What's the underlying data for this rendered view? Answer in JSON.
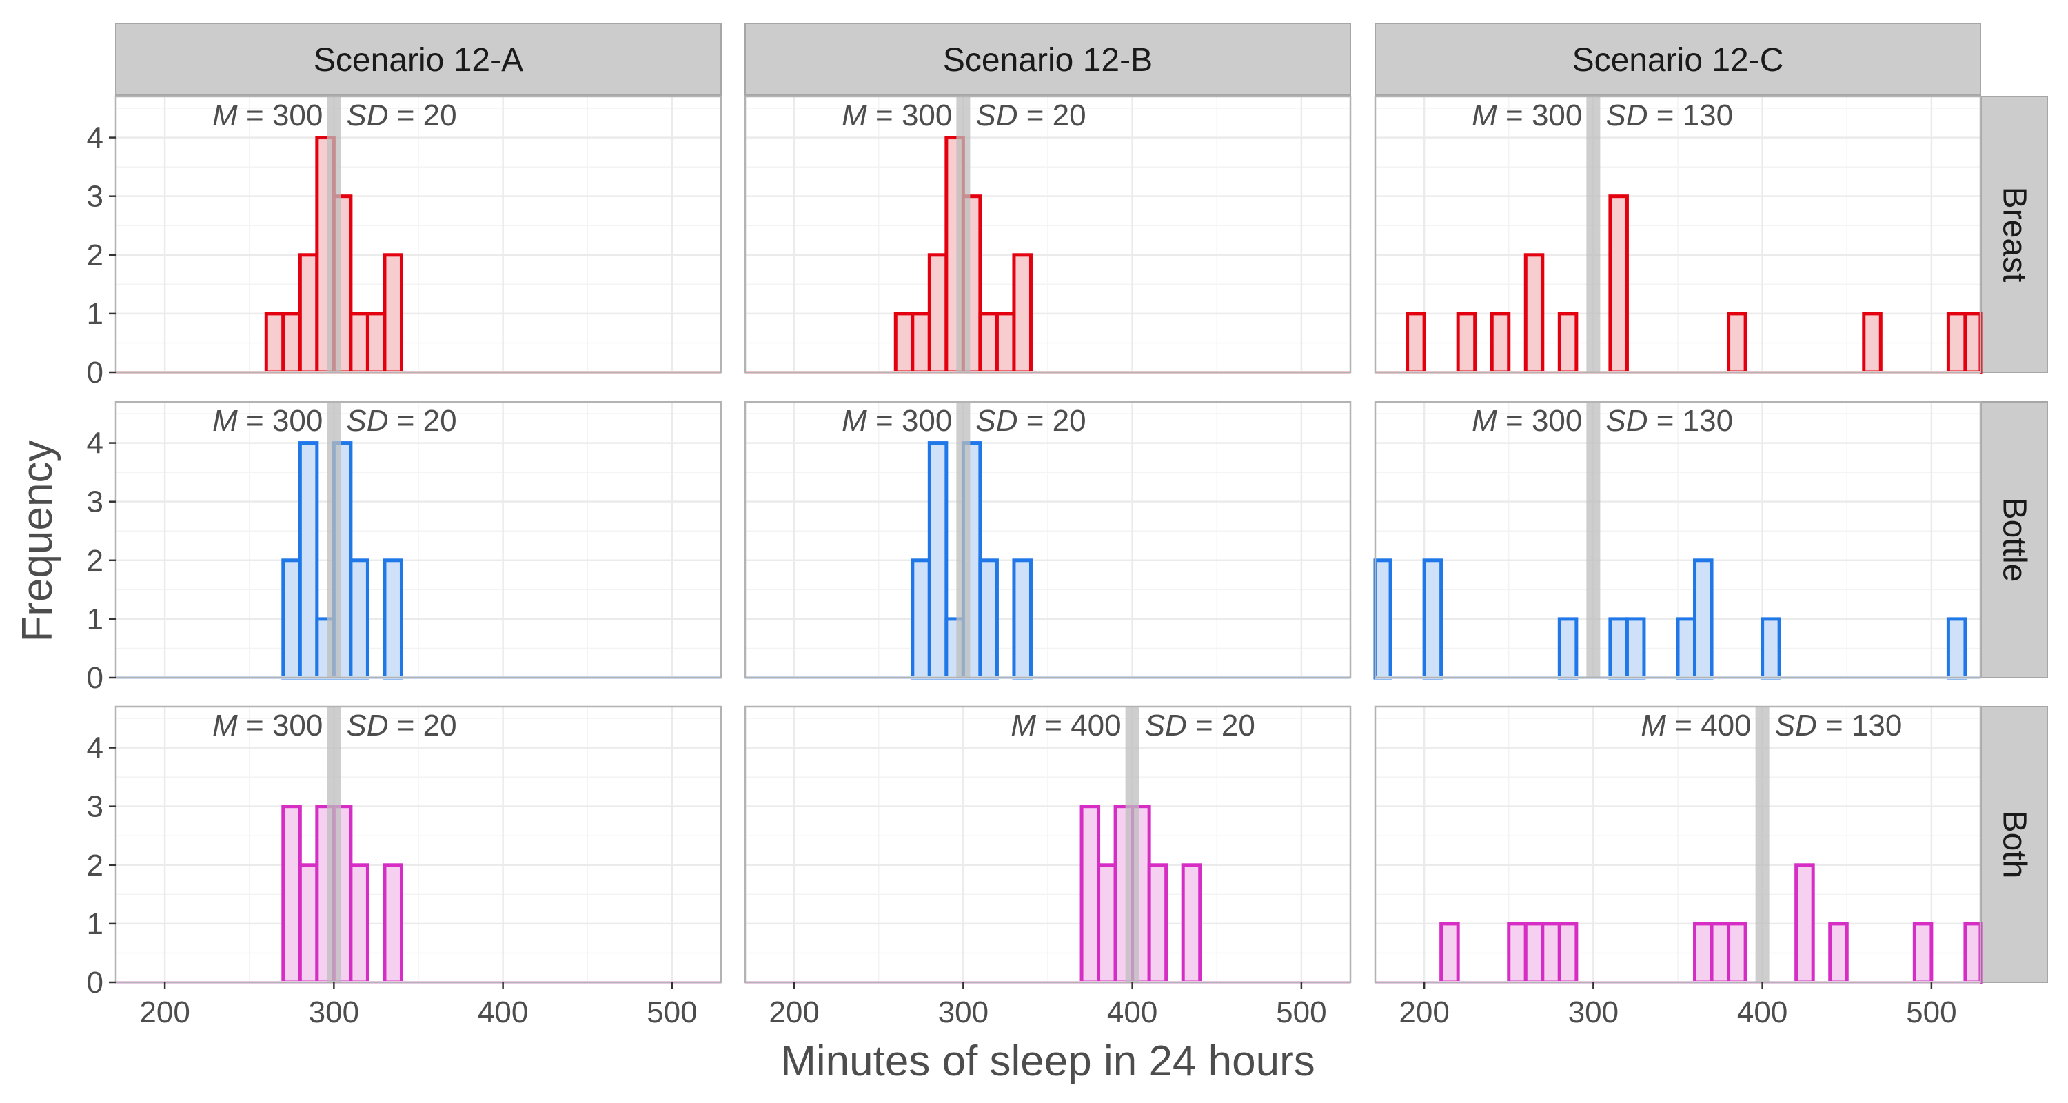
{
  "chart_data": {
    "type": "histogram",
    "xlabel": "Minutes of sleep in 24 hours",
    "ylabel": "Frequency",
    "xlim": [
      171,
      529
    ],
    "ylim": [
      0,
      4.7
    ],
    "x_ticks": [
      200,
      300,
      400,
      500
    ],
    "y_ticks": [
      0,
      1,
      2,
      3,
      4
    ],
    "bin_width": 10,
    "grid": true,
    "columns": [
      "Scenario 12-A",
      "Scenario 12-B",
      "Scenario 12-C"
    ],
    "rows": [
      "Breast",
      "Bottle",
      "Both"
    ],
    "colors": {
      "Breast": {
        "stroke": "#e3000f",
        "fill": "#f8cdd0"
      },
      "Bottle": {
        "stroke": "#1f77e8",
        "fill": "#cfe1f8"
      },
      "Both": {
        "stroke": "#d62ec4",
        "fill": "#f6d0f1"
      },
      "mean_line": "#bdbdbd",
      "strip_bg": "#cccccc",
      "grid": "#ebebeb"
    },
    "panels": [
      {
        "row": "Breast",
        "col": "Scenario 12-A",
        "m_label": "300",
        "sd_label": "20",
        "mean_line": 300,
        "bins": [
          [
            260,
            1
          ],
          [
            270,
            1
          ],
          [
            280,
            2
          ],
          [
            290,
            4
          ],
          [
            300,
            3
          ],
          [
            310,
            1
          ],
          [
            320,
            1
          ],
          [
            330,
            2
          ]
        ]
      },
      {
        "row": "Breast",
        "col": "Scenario 12-B",
        "m_label": "300",
        "sd_label": "20",
        "mean_line": 300,
        "bins": [
          [
            260,
            1
          ],
          [
            270,
            1
          ],
          [
            280,
            2
          ],
          [
            290,
            4
          ],
          [
            300,
            3
          ],
          [
            310,
            1
          ],
          [
            320,
            1
          ],
          [
            330,
            2
          ]
        ]
      },
      {
        "row": "Breast",
        "col": "Scenario 12-C",
        "m_label": "300",
        "sd_label": "130",
        "mean_line": 300,
        "bins": [
          [
            190,
            1
          ],
          [
            220,
            1
          ],
          [
            240,
            1
          ],
          [
            260,
            2
          ],
          [
            280,
            1
          ],
          [
            310,
            3
          ],
          [
            380,
            1
          ],
          [
            460,
            1
          ],
          [
            510,
            1
          ],
          [
            520,
            1
          ]
        ]
      },
      {
        "row": "Bottle",
        "col": "Scenario 12-A",
        "m_label": "300",
        "sd_label": "20",
        "mean_line": 300,
        "bins": [
          [
            270,
            2
          ],
          [
            280,
            4
          ],
          [
            290,
            1
          ],
          [
            300,
            4
          ],
          [
            310,
            2
          ],
          [
            330,
            2
          ]
        ]
      },
      {
        "row": "Bottle",
        "col": "Scenario 12-B",
        "m_label": "300",
        "sd_label": "20",
        "mean_line": 300,
        "bins": [
          [
            270,
            2
          ],
          [
            280,
            4
          ],
          [
            290,
            1
          ],
          [
            300,
            4
          ],
          [
            310,
            2
          ],
          [
            330,
            2
          ]
        ]
      },
      {
        "row": "Bottle",
        "col": "Scenario 12-C",
        "m_label": "300",
        "sd_label": "130",
        "mean_line": 300,
        "bins": [
          [
            170,
            2
          ],
          [
            200,
            2
          ],
          [
            280,
            1
          ],
          [
            310,
            1
          ],
          [
            320,
            1
          ],
          [
            350,
            1
          ],
          [
            360,
            2
          ],
          [
            400,
            1
          ],
          [
            510,
            1
          ]
        ]
      },
      {
        "row": "Both",
        "col": "Scenario 12-A",
        "m_label": "300",
        "sd_label": "20",
        "mean_line": 300,
        "bins": [
          [
            270,
            3
          ],
          [
            280,
            2
          ],
          [
            290,
            3
          ],
          [
            300,
            3
          ],
          [
            310,
            2
          ],
          [
            330,
            2
          ]
        ]
      },
      {
        "row": "Both",
        "col": "Scenario 12-B",
        "m_label": "400",
        "sd_label": "20",
        "mean_line": 400,
        "bins": [
          [
            370,
            3
          ],
          [
            380,
            2
          ],
          [
            390,
            3
          ],
          [
            400,
            3
          ],
          [
            410,
            2
          ],
          [
            430,
            2
          ]
        ]
      },
      {
        "row": "Both",
        "col": "Scenario 12-C",
        "m_label": "400",
        "sd_label": "130",
        "mean_line": 400,
        "bins": [
          [
            210,
            1
          ],
          [
            250,
            1
          ],
          [
            260,
            1
          ],
          [
            270,
            1
          ],
          [
            280,
            1
          ],
          [
            360,
            1
          ],
          [
            370,
            1
          ],
          [
            380,
            1
          ],
          [
            420,
            2
          ],
          [
            440,
            1
          ],
          [
            490,
            1
          ],
          [
            520,
            1
          ]
        ]
      }
    ]
  }
}
